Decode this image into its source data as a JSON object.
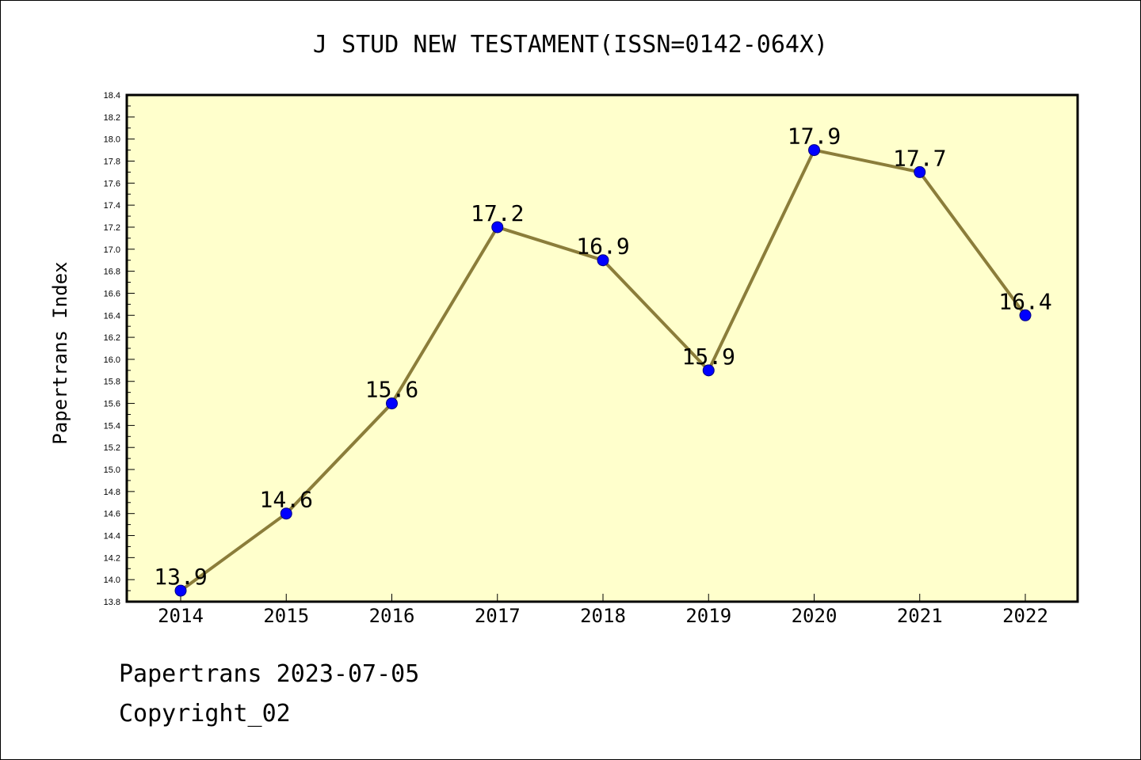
{
  "chart_data": {
    "type": "line",
    "title": "J STUD NEW TESTAMENT(ISSN=0142-064X)",
    "xlabel": "",
    "ylabel": "Papertrans Index",
    "categories": [
      "2014",
      "2015",
      "2016",
      "2017",
      "2018",
      "2019",
      "2020",
      "2021",
      "2022"
    ],
    "values": [
      13.9,
      14.6,
      15.6,
      17.2,
      16.9,
      15.9,
      17.9,
      17.7,
      16.4
    ],
    "data_labels": [
      "13.9",
      "14.6",
      "15.6",
      "17.2",
      "16.9",
      "15.9",
      "17.9",
      "17.7",
      "16.4"
    ],
    "ylim": [
      13.8,
      18.4
    ],
    "y_ticks": [
      "13.8",
      "14.0",
      "14.2",
      "14.4",
      "14.6",
      "14.8",
      "15.0",
      "15.2",
      "15.4",
      "15.6",
      "15.8",
      "16.0",
      "16.2",
      "16.4",
      "16.6",
      "16.8",
      "17.0",
      "17.2",
      "17.4",
      "17.6",
      "17.8",
      "18.0",
      "18.2",
      "18.4"
    ],
    "grid": false,
    "legend": "none",
    "colors": {
      "plot_background": "#ffffcc",
      "line": "#8b7d3a",
      "marker_fill": "#0000ff",
      "marker_edge": "#000080"
    }
  },
  "footer": {
    "line1": "Papertrans 2023-07-05",
    "line2": "Copyright_02"
  }
}
